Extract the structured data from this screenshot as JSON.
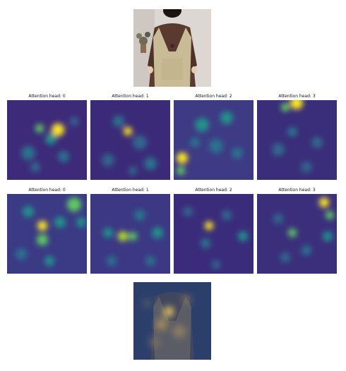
{
  "row1": {
    "titles": [
      "Attention head: 0",
      "Attention head: 1",
      "Attention head: 2",
      "Attention head: 3"
    ]
  },
  "row2": {
    "titles": [
      "Attention head: 0",
      "Attention head: 1",
      "Attention head: 2",
      "Attention head: 3"
    ]
  },
  "colors": {
    "viridis_low": "#3b1c6f",
    "viridis_mid": "#21918c",
    "viridis_high": "#fde725",
    "photo_bg": "#d9d4cf",
    "vest": "#c9bb95",
    "shirt": "#5a3a2e"
  },
  "icons": {
    "photo": "person-in-knit-vest-image",
    "overlay": "attention-overlay-image"
  }
}
